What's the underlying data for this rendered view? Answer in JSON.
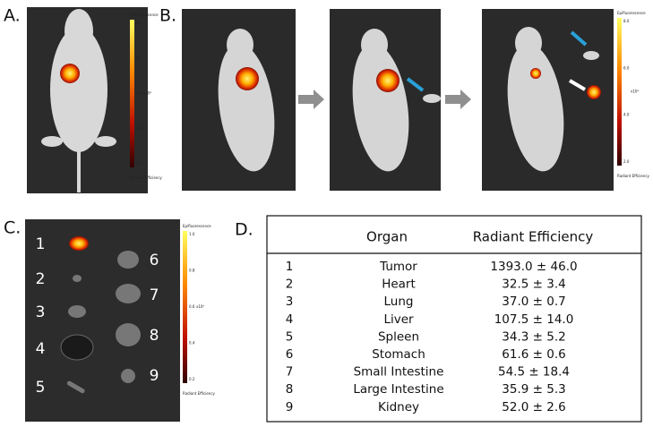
{
  "panels": {
    "a": {
      "label": "A.",
      "colorbar": {
        "title": "Epifluorescence",
        "ticks": [
          "6.0",
          "5.0",
          "4.0",
          "3.0",
          "2.0"
        ],
        "unit": "x10⁸",
        "label": "Radiant Efficiency"
      }
    },
    "b": {
      "label": "B.",
      "colorbar": {
        "title": "Epifluorescence",
        "ticks": [
          "8.0",
          "6.0",
          "4.0",
          "2.0"
        ],
        "unit": "x10⁸",
        "label": "Radiant Efficiency"
      }
    },
    "c": {
      "label": "C.",
      "organ_numbers": [
        "1",
        "2",
        "3",
        "4",
        "5",
        "6",
        "7",
        "8",
        "9"
      ],
      "colorbar": {
        "title": "Epifluorescence",
        "ticks": [
          "1.0",
          "0.8",
          "0.6",
          "0.4",
          "0.2"
        ],
        "unit": "x10⁹",
        "label": "Radiant Efficiency"
      }
    },
    "d": {
      "label": "D.",
      "table": {
        "headers": [
          "Organ",
          "Radiant Efficiency"
        ],
        "rows": [
          [
            "1",
            "Tumor",
            "1393.0 ± 46.0"
          ],
          [
            "2",
            "Heart",
            "32.5 ± 3.4"
          ],
          [
            "3",
            "Lung",
            "37.0 ± 0.7"
          ],
          [
            "4",
            "Liver",
            "107.5 ± 14.0"
          ],
          [
            "5",
            "Spleen",
            "34.3 ± 5.2"
          ],
          [
            "6",
            "Stomach",
            "61.6 ± 0.6"
          ],
          [
            "7",
            "Small Intestine",
            "54.5 ± 18.4"
          ],
          [
            "8",
            "Large Intestine",
            "35.9 ± 5.3"
          ],
          [
            "9",
            "Kidney",
            "52.0 ± 2.6"
          ]
        ]
      }
    }
  }
}
